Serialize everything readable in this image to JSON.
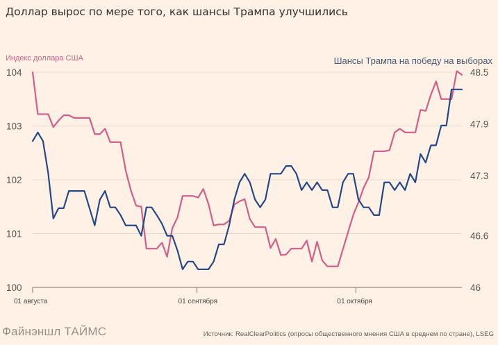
{
  "chart_data": {
    "type": "line",
    "title": "Доллар вырос по мере того, как шансы Трампа улучшились",
    "left_axis_label": "Индекс доллара США",
    "right_axis_label": "Шансы Трампа на победу на выборах",
    "left_ylim": [
      100,
      104
    ],
    "right_ylim": [
      46,
      48.5
    ],
    "left_ticks": [
      100,
      101,
      102,
      103,
      104
    ],
    "right_ticks": [
      46,
      46.6,
      47.3,
      47.9,
      48.5
    ],
    "left_tick_labels": [
      "100",
      "101",
      "102",
      "103",
      "104"
    ],
    "right_tick_labels": [
      "46",
      "46.6",
      "47.3",
      "47.9",
      "48.5"
    ],
    "x_ticks": [
      {
        "x": 0,
        "label": "01 августа"
      },
      {
        "x": 31,
        "label": "01 сентября"
      },
      {
        "x": 61,
        "label": "01 октября"
      }
    ],
    "x_range": [
      0,
      81
    ],
    "series": [
      {
        "name": "Индекс доллара США",
        "axis": "left",
        "color": "#d45d89",
        "points": [
          [
            0,
            104.0
          ],
          [
            1,
            103.22
          ],
          [
            2,
            103.22
          ],
          [
            3,
            103.22
          ],
          [
            4,
            102.98
          ],
          [
            5,
            103.1
          ],
          [
            6,
            103.2
          ],
          [
            7,
            103.2
          ],
          [
            8,
            103.15
          ],
          [
            9,
            103.15
          ],
          [
            10,
            103.15
          ],
          [
            11,
            103.15
          ],
          [
            12,
            102.85
          ],
          [
            13,
            102.85
          ],
          [
            14,
            102.95
          ],
          [
            15,
            102.7
          ],
          [
            16,
            102.7
          ],
          [
            17,
            102.7
          ],
          [
            18,
            102.17
          ],
          [
            19,
            101.8
          ],
          [
            20,
            101.52
          ],
          [
            21,
            101.5
          ],
          [
            22,
            100.72
          ],
          [
            23,
            100.72
          ],
          [
            24,
            100.72
          ],
          [
            25,
            100.83
          ],
          [
            26,
            100.57
          ],
          [
            27,
            101.1
          ],
          [
            28,
            101.3
          ],
          [
            29,
            101.7
          ],
          [
            30,
            101.7
          ],
          [
            31,
            101.7
          ],
          [
            32,
            101.67
          ],
          [
            33,
            101.83
          ],
          [
            34,
            101.55
          ],
          [
            35,
            101.15
          ],
          [
            36,
            101.17
          ],
          [
            37,
            101.17
          ],
          [
            38,
            101.24
          ],
          [
            39,
            101.54
          ],
          [
            40,
            101.6
          ],
          [
            41,
            101.64
          ],
          [
            42,
            101.27
          ],
          [
            43,
            101.12
          ],
          [
            44,
            101.12
          ],
          [
            45,
            101.12
          ],
          [
            46,
            100.73
          ],
          [
            47,
            100.9
          ],
          [
            48,
            100.6
          ],
          [
            49,
            100.61
          ],
          [
            50,
            100.72
          ],
          [
            51,
            100.72
          ],
          [
            52,
            100.72
          ],
          [
            53,
            100.87
          ],
          [
            54,
            100.48
          ],
          [
            55,
            100.85
          ],
          [
            56,
            100.5
          ],
          [
            57,
            100.39
          ],
          [
            58,
            100.39
          ],
          [
            59,
            100.39
          ],
          [
            60,
            100.71
          ],
          [
            61,
            101.03
          ],
          [
            62,
            101.35
          ],
          [
            63,
            101.58
          ],
          [
            64,
            101.85
          ],
          [
            65,
            102.05
          ],
          [
            66,
            102.53
          ],
          [
            67,
            102.53
          ],
          [
            68,
            102.53
          ],
          [
            69,
            102.55
          ],
          [
            70,
            102.88
          ],
          [
            71,
            102.95
          ],
          [
            72,
            102.88
          ],
          [
            73,
            102.88
          ],
          [
            74,
            102.88
          ],
          [
            75,
            103.3
          ],
          [
            76,
            103.28
          ],
          [
            77,
            103.58
          ],
          [
            78,
            103.83
          ],
          [
            79,
            103.5
          ],
          [
            80,
            103.5
          ],
          [
            81,
            103.5
          ],
          [
            82,
            104.02
          ],
          [
            83,
            103.95
          ]
        ]
      },
      {
        "name": "Шансы Трампа на победу на выборах",
        "axis": "right",
        "color": "#24478a",
        "points": [
          [
            0,
            47.7
          ],
          [
            1,
            47.8
          ],
          [
            2,
            47.7
          ],
          [
            3,
            47.33
          ],
          [
            4,
            46.8
          ],
          [
            5,
            46.92
          ],
          [
            6,
            46.92
          ],
          [
            7,
            47.12
          ],
          [
            8,
            47.12
          ],
          [
            9,
            47.12
          ],
          [
            10,
            47.12
          ],
          [
            11,
            46.92
          ],
          [
            12,
            46.72
          ],
          [
            13,
            47.02
          ],
          [
            14,
            47.12
          ],
          [
            15,
            46.93
          ],
          [
            16,
            46.93
          ],
          [
            17,
            46.84
          ],
          [
            18,
            46.72
          ],
          [
            19,
            46.72
          ],
          [
            20,
            46.72
          ],
          [
            21,
            46.6
          ],
          [
            22,
            46.93
          ],
          [
            23,
            46.93
          ],
          [
            24,
            46.84
          ],
          [
            25,
            46.74
          ],
          [
            26,
            46.6
          ],
          [
            27,
            46.6
          ],
          [
            28,
            46.43
          ],
          [
            29,
            46.21
          ],
          [
            30,
            46.3
          ],
          [
            31,
            46.3
          ],
          [
            32,
            46.21
          ],
          [
            33,
            46.21
          ],
          [
            34,
            46.21
          ],
          [
            35,
            46.3
          ],
          [
            36,
            46.5
          ],
          [
            37,
            46.5
          ],
          [
            38,
            46.72
          ],
          [
            39,
            47.02
          ],
          [
            40,
            47.22
          ],
          [
            41,
            47.32
          ],
          [
            42,
            47.22
          ],
          [
            43,
            47.02
          ],
          [
            44,
            46.93
          ],
          [
            45,
            47.02
          ],
          [
            46,
            47.32
          ],
          [
            47,
            47.32
          ],
          [
            48,
            47.32
          ],
          [
            49,
            47.41
          ],
          [
            50,
            47.41
          ],
          [
            51,
            47.32
          ],
          [
            52,
            47.13
          ],
          [
            53,
            47.22
          ],
          [
            54,
            47.13
          ],
          [
            55,
            47.22
          ],
          [
            56,
            47.13
          ],
          [
            57,
            47.13
          ],
          [
            58,
            46.93
          ],
          [
            59,
            46.93
          ],
          [
            60,
            47.22
          ],
          [
            61,
            47.32
          ],
          [
            62,
            47.32
          ],
          [
            63,
            47.02
          ],
          [
            64,
            46.93
          ],
          [
            65,
            46.93
          ],
          [
            66,
            46.84
          ],
          [
            67,
            46.84
          ],
          [
            68,
            47.22
          ],
          [
            69,
            47.22
          ],
          [
            70,
            47.13
          ],
          [
            71,
            47.22
          ],
          [
            72,
            47.13
          ],
          [
            73,
            47.32
          ],
          [
            74,
            47.22
          ],
          [
            75,
            47.55
          ],
          [
            76,
            47.45
          ],
          [
            77,
            47.65
          ],
          [
            78,
            47.65
          ],
          [
            79,
            47.88
          ],
          [
            80,
            47.88
          ],
          [
            81,
            48.3
          ],
          [
            82,
            48.3
          ],
          [
            83,
            48.3
          ]
        ]
      }
    ]
  },
  "footer": {
    "source": "Источник: RealClearPolitics (опросы общественного мнения США в среднем по стране), LSEG",
    "logo": "Файнэншл ТАЙМС"
  }
}
